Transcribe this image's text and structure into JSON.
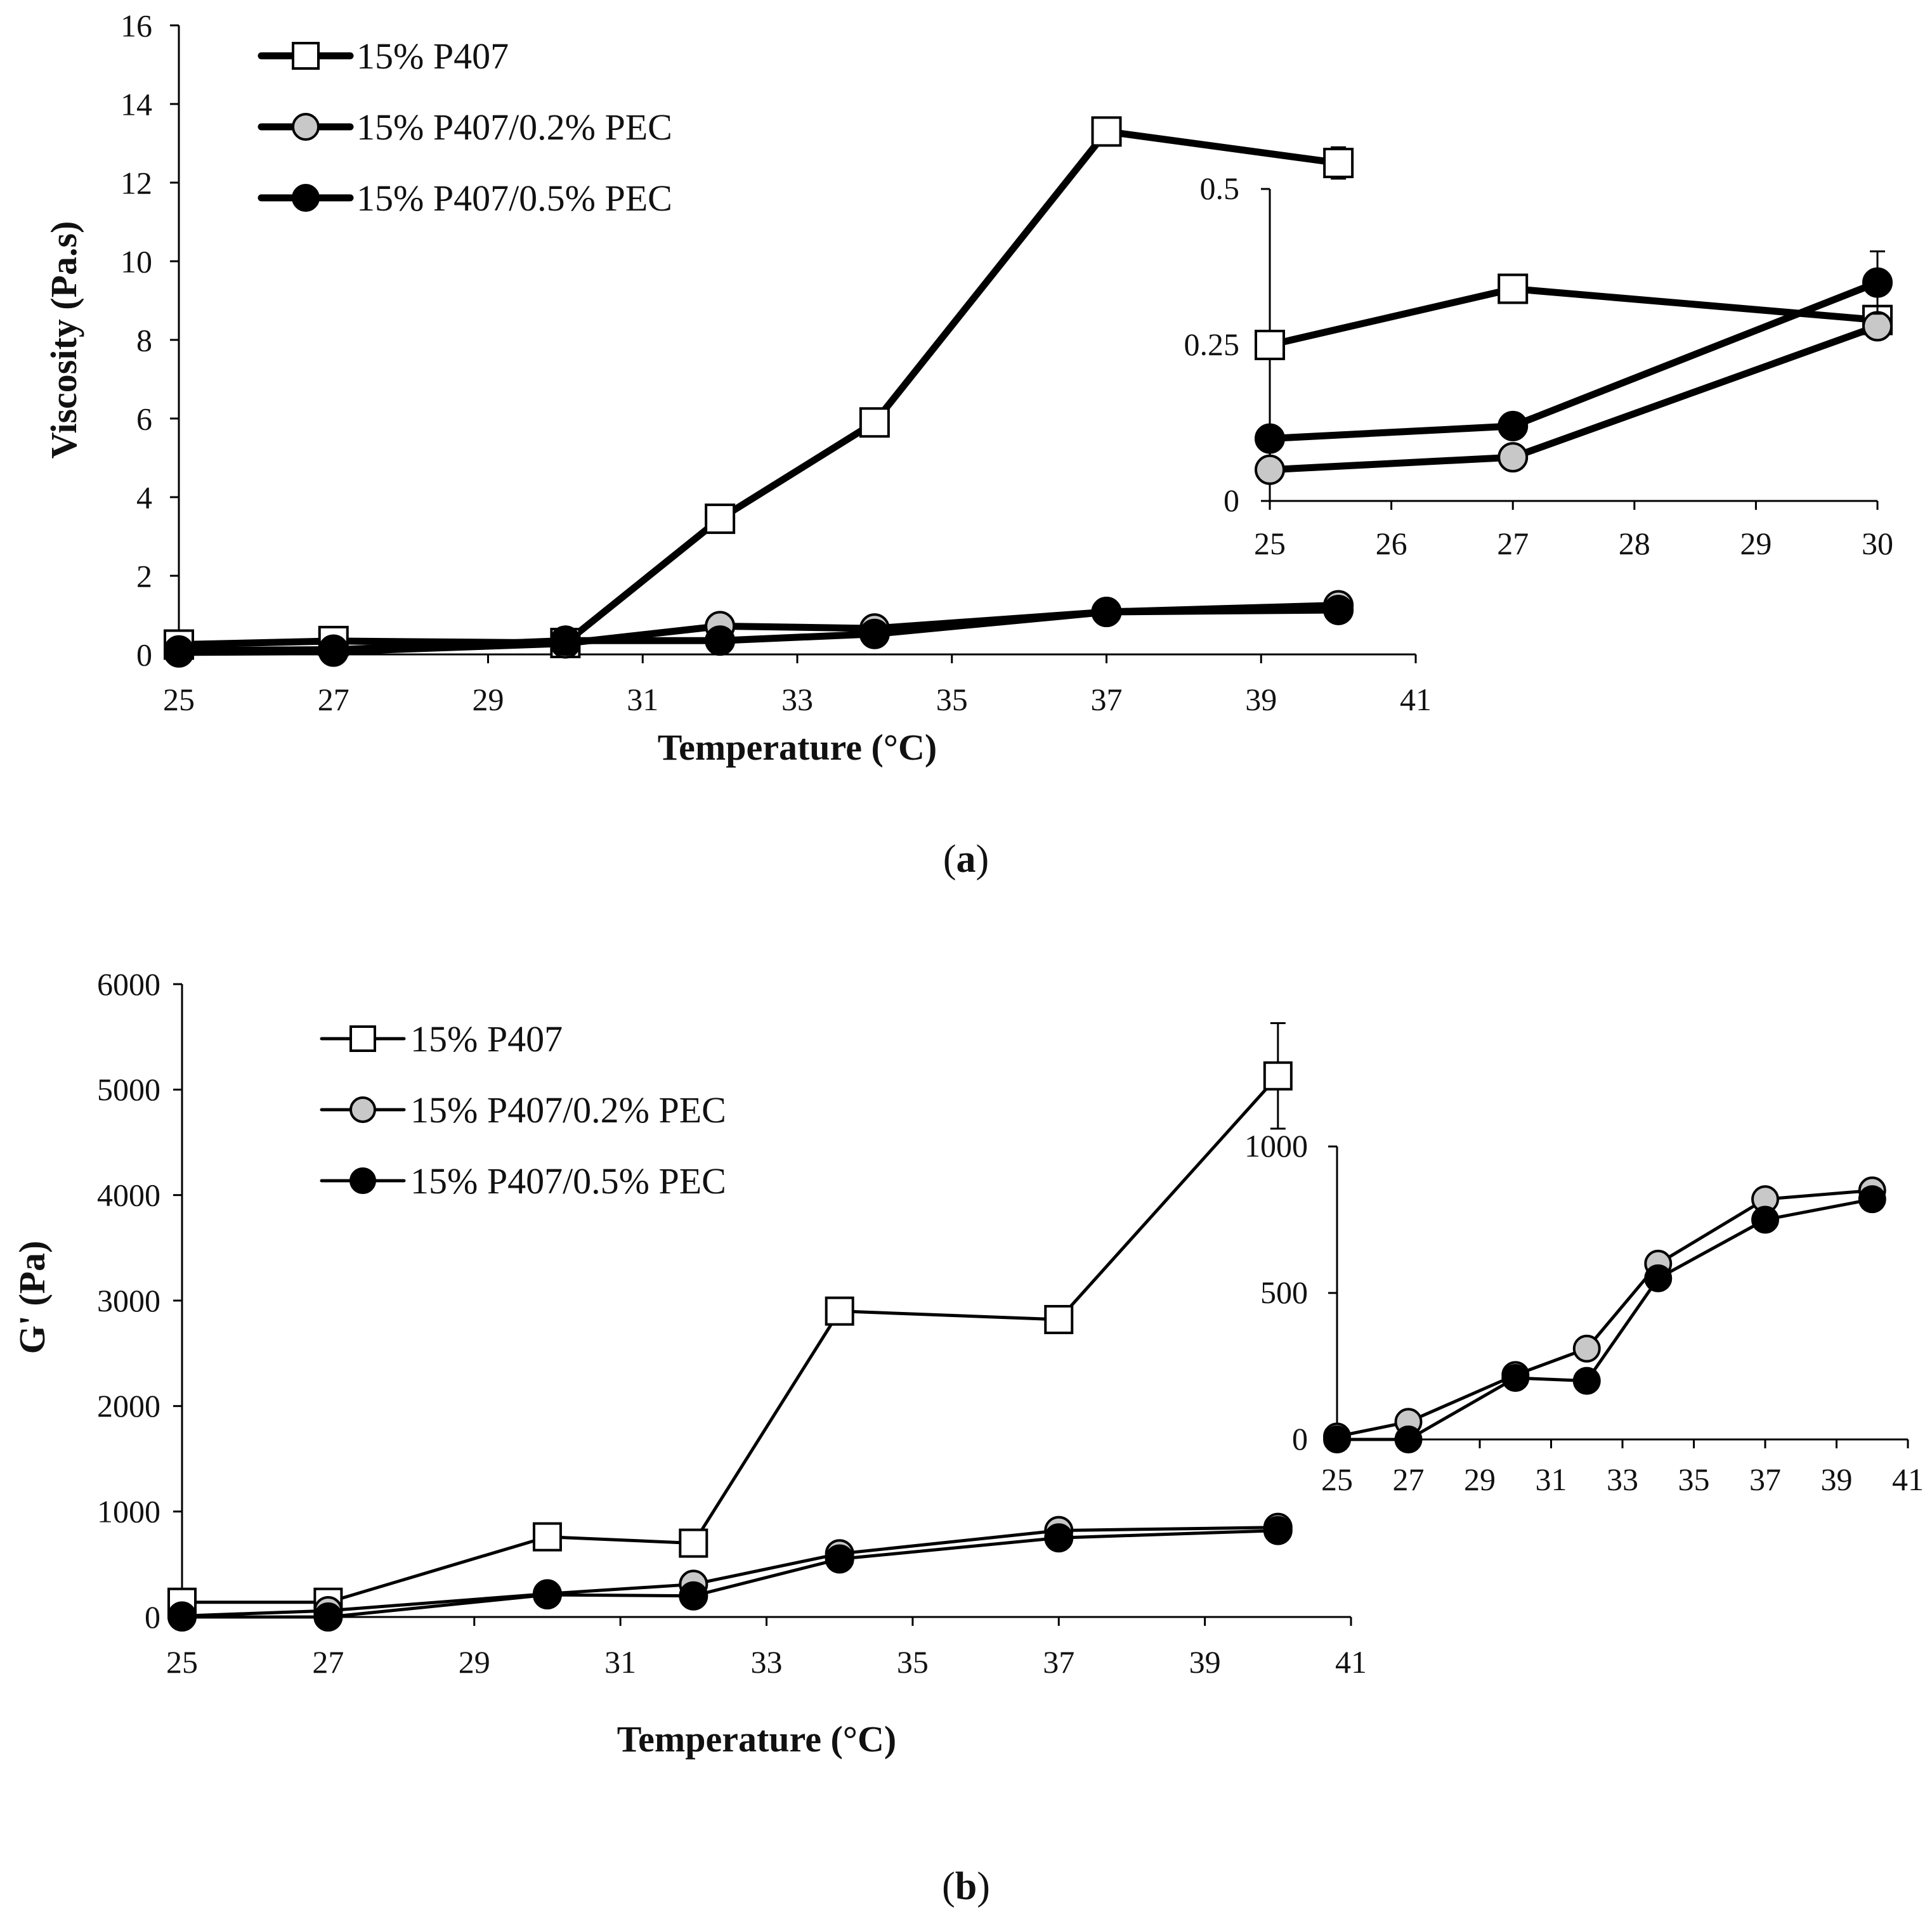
{
  "panels": [
    {
      "label_open": "(",
      "label_letter": "a",
      "label_close": ")",
      "legend_style": "bold",
      "legend_position": "top-left",
      "chart_data": [
        {
          "type": "line",
          "role": "main",
          "xlabel": "Temperature (°C)",
          "ylabel": "Viscosity (Pa.s)",
          "xlim": [
            25,
            41
          ],
          "ylim": [
            0,
            16
          ],
          "xticks": [
            "25",
            "27",
            "29",
            "31",
            "33",
            "35",
            "37",
            "39",
            "41"
          ],
          "yticks": [
            "0",
            "2",
            "4",
            "6",
            "8",
            "10",
            "12",
            "14",
            "16"
          ],
          "x": [
            25,
            27,
            30,
            32,
            34,
            37,
            40
          ],
          "series": [
            {
              "name": "15% P407",
              "marker": "square-open",
              "values": [
                0.25,
                0.34,
                0.29,
                3.45,
                5.9,
                13.3,
                12.5
              ],
              "error": [
                0,
                0,
                0,
                0,
                0,
                0,
                0.4
              ]
            },
            {
              "name": "15% P407/0.2% PEC",
              "marker": "circle-gray",
              "values": [
                0.05,
                0.07,
                0.28,
                0.72,
                0.66,
                1.08,
                1.25
              ],
              "error": [
                0,
                0,
                0,
                0,
                0,
                0,
                0
              ]
            },
            {
              "name": "15% P407/0.5% PEC",
              "marker": "circle-black",
              "values": [
                0.1,
                0.12,
                0.35,
                0.35,
                0.52,
                1.08,
                1.13
              ],
              "error": [
                0,
                0,
                0,
                0,
                0,
                0,
                0
              ]
            }
          ]
        },
        {
          "type": "line",
          "role": "inset",
          "xlim": [
            25,
            30
          ],
          "ylim": [
            0,
            0.5
          ],
          "xticks": [
            "25",
            "26",
            "27",
            "28",
            "29",
            "30"
          ],
          "yticks": [
            "0",
            "0.25",
            "0.5"
          ],
          "x": [
            25,
            27,
            30
          ],
          "series": [
            {
              "name": "15% P407",
              "marker": "square-open",
              "values": [
                0.25,
                0.34,
                0.29
              ],
              "error": [
                0,
                0,
                0
              ]
            },
            {
              "name": "15% P407/0.2% PEC",
              "marker": "circle-gray",
              "values": [
                0.05,
                0.07,
                0.28
              ],
              "error": [
                0,
                0,
                0
              ]
            },
            {
              "name": "15% P407/0.5% PEC",
              "marker": "circle-black",
              "values": [
                0.1,
                0.12,
                0.35
              ],
              "error": [
                0,
                0,
                0.05
              ]
            }
          ]
        }
      ]
    },
    {
      "label_open": "(",
      "label_letter": "b",
      "label_close": ")",
      "legend_style": "thin",
      "legend_position": "top-left",
      "chart_data": [
        {
          "type": "line",
          "role": "main",
          "xlabel": "Temperature (°C)",
          "ylabel": "G' (Pa)",
          "xlim": [
            25,
            41
          ],
          "ylim": [
            0,
            6000
          ],
          "xticks": [
            "25",
            "27",
            "29",
            "31",
            "33",
            "35",
            "37",
            "39",
            "41"
          ],
          "yticks": [
            "0",
            "1000",
            "2000",
            "3000",
            "4000",
            "5000",
            "6000"
          ],
          "x": [
            25,
            27,
            30,
            32,
            34,
            37,
            40
          ],
          "series": [
            {
              "name": "15% P407",
              "marker": "square-open",
              "values": [
                140,
                140,
                760,
                700,
                2900,
                2820,
                5130
              ],
              "error": [
                0,
                0,
                0,
                0,
                0,
                0,
                500
              ]
            },
            {
              "name": "15% P407/0.2% PEC",
              "marker": "circle-gray",
              "values": [
                10,
                60,
                220,
                310,
                600,
                820,
                850
              ],
              "error": [
                0,
                0,
                0,
                0,
                0,
                0,
                0
              ]
            },
            {
              "name": "15% P407/0.5% PEC",
              "marker": "circle-black",
              "values": [
                0,
                0,
                210,
                200,
                550,
                750,
                820
              ],
              "error": [
                0,
                0,
                0,
                0,
                0,
                0,
                0
              ]
            }
          ]
        },
        {
          "type": "line",
          "role": "inset",
          "xlim": [
            25,
            41
          ],
          "ylim": [
            0,
            1000
          ],
          "xticks": [
            "25",
            "27",
            "29",
            "31",
            "33",
            "35",
            "37",
            "39",
            "41"
          ],
          "yticks": [
            "0",
            "500",
            "1000"
          ],
          "x": [
            25,
            27,
            30,
            32,
            34,
            37,
            40
          ],
          "series": [
            {
              "name": "15% P407/0.2% PEC",
              "marker": "circle-gray",
              "values": [
                10,
                60,
                220,
                310,
                600,
                820,
                850
              ],
              "error": [
                0,
                0,
                0,
                0,
                0,
                0,
                0
              ]
            },
            {
              "name": "15% P407/0.5% PEC",
              "marker": "circle-black",
              "values": [
                0,
                0,
                210,
                200,
                550,
                750,
                820
              ],
              "error": [
                0,
                0,
                0,
                0,
                0,
                0,
                0
              ]
            }
          ]
        }
      ]
    }
  ]
}
